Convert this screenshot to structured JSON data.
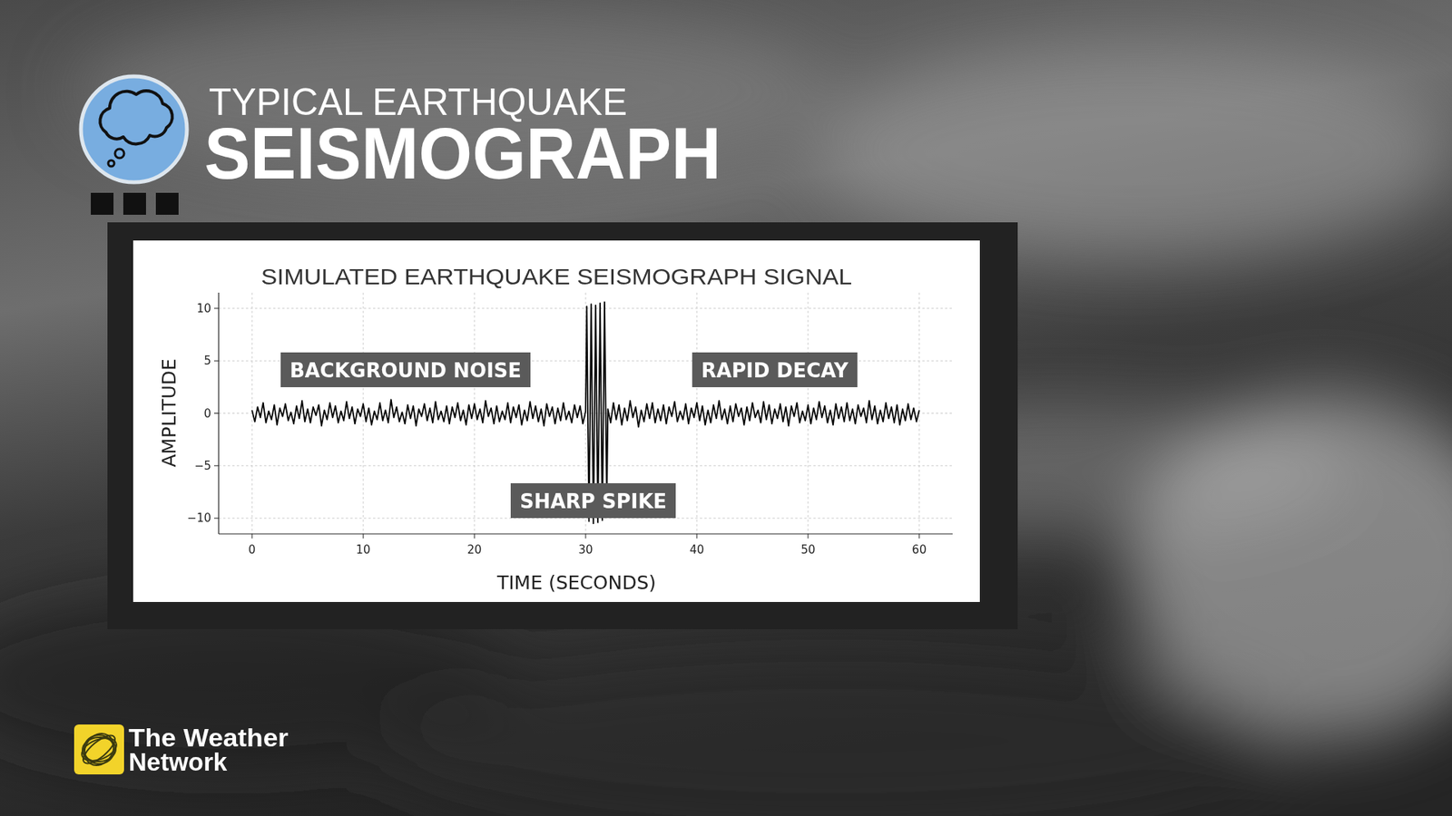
{
  "page": {
    "title_top": "TYPICAL EARTHQUAKE",
    "title_main": "SEISMOGRAPH",
    "brand": [
      "The Weather",
      "Network"
    ]
  },
  "chart_data": {
    "type": "line",
    "title": "SIMULATED EARTHQUAKE SEISMOGRAPH SIGNAL",
    "x_label": "TIME (SECONDS)",
    "y_label": "AMPLITUDE",
    "annotations": [
      "BACKGROUND NOISE",
      "RAPID DECAY",
      "SHARP SPIKE"
    ],
    "color": "#000000",
    "grid": true,
    "xlim": [
      -3,
      63
    ],
    "ylim": [
      -11.5,
      11.5
    ],
    "xticks": [
      0,
      10,
      20,
      30,
      40,
      50,
      60
    ],
    "yticks": [
      {
        "value": -10,
        "label": "−10"
      },
      {
        "value": -5,
        "label": "−5"
      },
      0,
      5,
      10
    ],
    "x": [
      0,
      0.25,
      0.5,
      0.75,
      1,
      1.25,
      1.5,
      1.75,
      2,
      2.25,
      2.5,
      2.75,
      3,
      3.25,
      3.5,
      3.75,
      4,
      4.25,
      4.5,
      4.75,
      5,
      5.25,
      5.5,
      5.75,
      6,
      6.25,
      6.5,
      6.75,
      7,
      7.25,
      7.5,
      7.75,
      8,
      8.25,
      8.5,
      8.75,
      9,
      9.25,
      9.5,
      9.75,
      10,
      10.25,
      10.5,
      10.75,
      11,
      11.25,
      11.5,
      11.75,
      12,
      12.25,
      12.5,
      12.75,
      13,
      13.25,
      13.5,
      13.75,
      14,
      14.25,
      14.5,
      14.75,
      15,
      15.25,
      15.5,
      15.75,
      16,
      16.25,
      16.5,
      16.75,
      17,
      17.25,
      17.5,
      17.75,
      18,
      18.25,
      18.5,
      18.75,
      19,
      19.25,
      19.5,
      19.75,
      20,
      20.25,
      20.5,
      20.75,
      21,
      21.25,
      21.5,
      21.75,
      22,
      22.25,
      22.5,
      22.75,
      23,
      23.25,
      23.5,
      23.75,
      24,
      24.25,
      24.5,
      24.75,
      25,
      25.25,
      25.5,
      25.75,
      26,
      26.25,
      26.5,
      26.75,
      27,
      27.25,
      27.5,
      27.75,
      28,
      28.25,
      28.5,
      28.75,
      29,
      29.25,
      29.5,
      29.75,
      30,
      30.1,
      30.3,
      30.5,
      30.7,
      30.9,
      31.1,
      31.3,
      31.5,
      31.7,
      31.9,
      32,
      32.25,
      32.5,
      32.75,
      33,
      33.25,
      33.5,
      33.75,
      34,
      34.25,
      34.5,
      34.75,
      35,
      35.25,
      35.5,
      35.75,
      36,
      36.25,
      36.5,
      36.75,
      37,
      37.25,
      37.5,
      37.75,
      38,
      38.25,
      38.5,
      38.75,
      39,
      39.25,
      39.5,
      39.75,
      40,
      40.25,
      40.5,
      40.75,
      41,
      41.25,
      41.5,
      41.75,
      42,
      42.25,
      42.5,
      42.75,
      43,
      43.25,
      43.5,
      43.75,
      44,
      44.25,
      44.5,
      44.75,
      45,
      45.25,
      45.5,
      45.75,
      46,
      46.25,
      46.5,
      46.75,
      47,
      47.25,
      47.5,
      47.75,
      48,
      48.25,
      48.5,
      48.75,
      49,
      49.25,
      49.5,
      49.75,
      50,
      50.25,
      50.5,
      50.75,
      51,
      51.25,
      51.5,
      51.75,
      52,
      52.25,
      52.5,
      52.75,
      53,
      53.25,
      53.5,
      53.75,
      54,
      54.25,
      54.5,
      54.75,
      55,
      55.25,
      55.5,
      55.75,
      56,
      56.25,
      56.5,
      56.75,
      57,
      57.25,
      57.5,
      57.75,
      58,
      58.25,
      58.5,
      58.75,
      59,
      59.25,
      59.5,
      59.75,
      60
    ],
    "values": [
      0.3,
      -0.8,
      0.6,
      -0.4,
      1.0,
      -0.9,
      0.2,
      -0.6,
      0.8,
      -1.1,
      0.5,
      -0.3,
      0.9,
      -0.7,
      0.1,
      -1.0,
      0.7,
      -0.5,
      1.2,
      -0.8,
      0.4,
      -0.9,
      0.6,
      -0.2,
      0.8,
      -1.2,
      0.3,
      -0.6,
      1.0,
      -0.4,
      0.7,
      -0.9,
      0.2,
      -0.7,
      1.1,
      -0.5,
      0.6,
      -1.0,
      0.4,
      -0.3,
      0.9,
      -0.8,
      0.5,
      -1.1,
      0.2,
      -0.6,
      1.0,
      -0.7,
      0.3,
      -0.9,
      1.3,
      -0.4,
      0.6,
      -0.8,
      0.1,
      -1.0,
      0.8,
      -0.5,
      0.7,
      -1.2,
      0.4,
      -0.3,
      0.9,
      -0.7,
      0.5,
      -0.9,
      1.1,
      -0.6,
      0.2,
      -0.8,
      0.7,
      -1.0,
      0.6,
      -0.4,
      1.0,
      -0.7,
      0.3,
      -1.1,
      0.8,
      -0.5,
      0.9,
      -0.6,
      0.4,
      -0.9,
      1.2,
      -0.3,
      0.5,
      -1.0,
      0.7,
      -0.8,
      0.2,
      -0.6,
      1.0,
      -0.9,
      0.6,
      -0.4,
      0.8,
      -1.1,
      0.3,
      -0.7,
      1.1,
      -0.5,
      0.7,
      -0.8,
      0.4,
      -1.2,
      0.9,
      -0.3,
      0.6,
      -1.0,
      0.5,
      -0.7,
      1.0,
      -0.6,
      0.2,
      -0.9,
      0.8,
      -0.4,
      0.7,
      -1.0,
      0.2,
      10.2,
      -10.3,
      10.4,
      -10.5,
      10.3,
      -10.4,
      10.5,
      -10.2,
      10.6,
      -8.5,
      0.4,
      -0.9,
      1.0,
      -0.6,
      0.8,
      -1.1,
      0.5,
      -0.7,
      1.2,
      -0.4,
      0.6,
      -1.3,
      0.3,
      -0.8,
      0.9,
      -0.5,
      1.0,
      -0.9,
      0.4,
      -0.7,
      0.8,
      -1.0,
      0.6,
      -0.3,
      1.1,
      -0.8,
      0.2,
      -0.6,
      0.9,
      -1.0,
      0.5,
      -0.4,
      1.0,
      -0.7,
      0.7,
      -1.1,
      0.3,
      -0.9,
      0.8,
      -0.5,
      1.2,
      -0.6,
      0.4,
      -1.0,
      0.7,
      -0.8,
      0.9,
      -0.3,
      0.5,
      -1.1,
      0.6,
      -0.7,
      1.0,
      -0.4,
      0.3,
      -0.9,
      1.1,
      -0.6,
      0.8,
      -1.0,
      0.4,
      -0.5,
      0.9,
      -0.8,
      0.6,
      -1.2,
      0.7,
      -0.3,
      1.0,
      -0.9,
      0.2,
      -0.7,
      0.8,
      -1.0,
      0.5,
      -0.6,
      1.1,
      -0.4,
      0.7,
      -0.9,
      0.3,
      -1.1,
      0.9,
      -0.5,
      0.6,
      -0.8,
      1.0,
      -0.7,
      0.4,
      -1.0,
      0.8,
      -0.3,
      0.5,
      -0.9,
      1.2,
      -0.6,
      0.7,
      -1.0,
      0.3,
      -0.8,
      1.0,
      -0.5,
      0.6,
      -0.9,
      0.8,
      -1.1,
      0.4,
      -0.7,
      0.9,
      -0.6,
      0.5,
      -0.8,
      0.3
    ]
  }
}
